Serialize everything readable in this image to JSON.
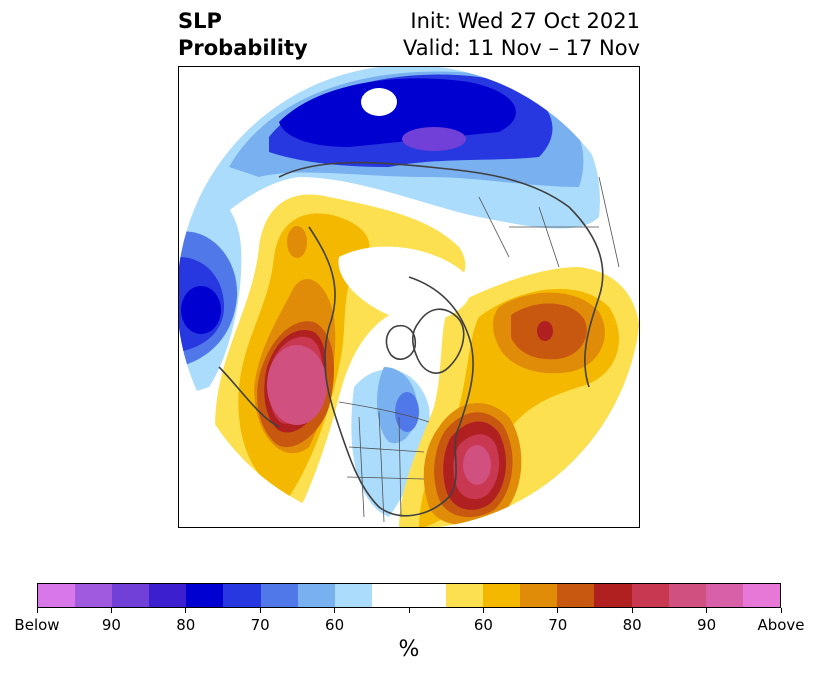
{
  "title": {
    "left_line1": "SLP",
    "left_line2": "Probability",
    "right_line1": "Init: Wed 27 Oct 2021",
    "right_line2": "Valid: 11 Nov – 17 Nov"
  },
  "colorbar": {
    "unit": "%",
    "colors": [
      "#d878e8",
      "#a05ae0",
      "#7040d8",
      "#3c20d0",
      "#0000d0",
      "#2838e0",
      "#5078e8",
      "#78b0f0",
      "#acdcfc",
      "#ffffff",
      "#ffffff",
      "#fde050",
      "#f4b800",
      "#e08c08",
      "#c85810",
      "#b02020",
      "#c83850",
      "#d05080",
      "#d860a8",
      "#e878d8"
    ],
    "tick_labels": [
      "Below",
      "90",
      "80",
      "70",
      "60",
      "",
      "60",
      "70",
      "80",
      "90",
      "Above"
    ]
  },
  "map": {
    "projection": "north polar stereographic",
    "palette": {
      "ocean": "#ffffff",
      "coast": "#404040",
      "border": "#505050"
    },
    "fields": [
      {
        "name": "arctic-low",
        "category": "below",
        "peak_percent": 85
      },
      {
        "name": "north-pacific-low",
        "category": "below",
        "peak_percent": 80
      },
      {
        "name": "eurasia-low",
        "category": "below",
        "peak_percent": 60
      },
      {
        "name": "central-us-low",
        "category": "below",
        "peak_percent": 70
      },
      {
        "name": "gulf-of-alaska-high",
        "category": "above",
        "peak_percent": 90
      },
      {
        "name": "north-atlantic-high",
        "category": "above",
        "peak_percent": 90
      },
      {
        "name": "siberia-high",
        "category": "above",
        "peak_percent": 75
      },
      {
        "name": "west-canada-high",
        "category": "above",
        "peak_percent": 70
      }
    ]
  }
}
